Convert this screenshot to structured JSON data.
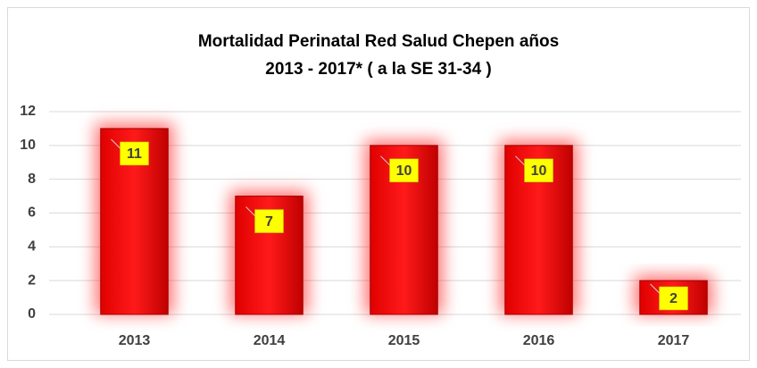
{
  "chart_data": {
    "type": "bar",
    "title": "Mortalidad Perinatal Red Salud Chepen años",
    "subtitle": "2013 - 2017*  ( a la SE 31-34 )",
    "categories": [
      "2013",
      "2014",
      "2015",
      "2016",
      "2017"
    ],
    "values": [
      11,
      7,
      10,
      10,
      2
    ],
    "color": "#ff0000",
    "label_color": "#ffff00",
    "ylim": [
      0,
      12
    ],
    "yticks": [
      0,
      2,
      4,
      6,
      8,
      10,
      12
    ],
    "grid": true
  }
}
